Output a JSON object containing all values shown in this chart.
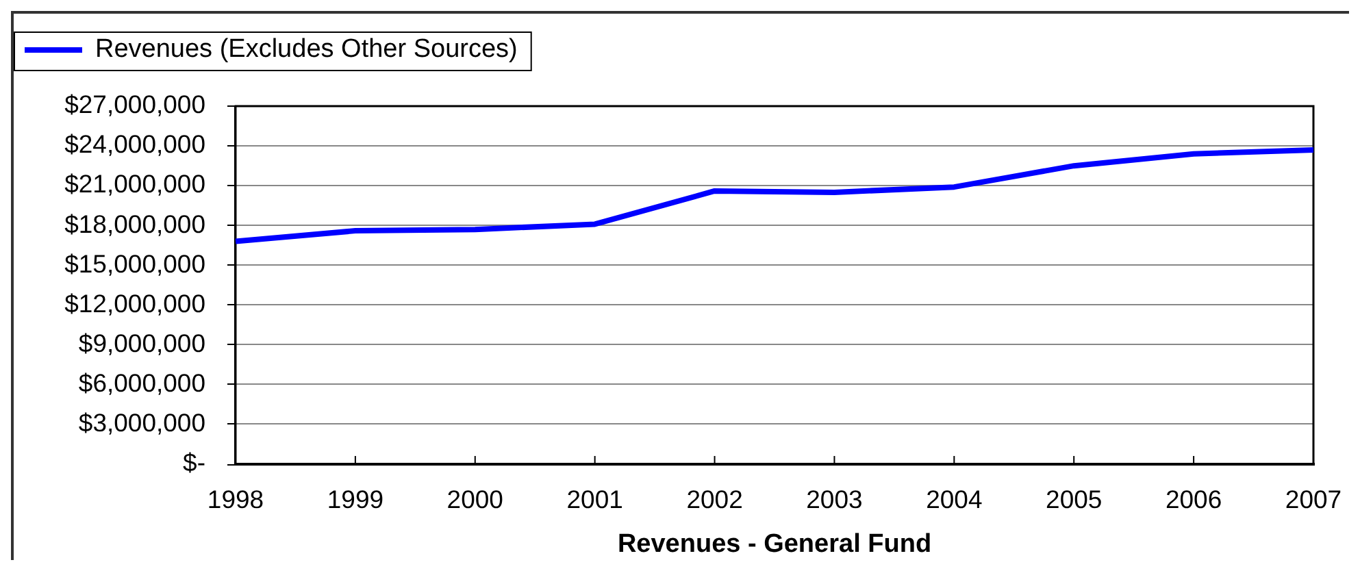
{
  "chart_data": {
    "type": "line",
    "categories": [
      "1998",
      "1999",
      "2000",
      "2001",
      "2002",
      "2003",
      "2004",
      "2005",
      "2006",
      "2007"
    ],
    "series": [
      {
        "name": "Revenues (Excludes Other Sources)",
        "color": "#0000ff",
        "values": [
          16800000,
          17600000,
          17700000,
          18100000,
          20600000,
          20500000,
          20900000,
          22500000,
          23400000,
          23700000
        ]
      }
    ],
    "xlabel": "Revenues - General Fund",
    "ylim": [
      0,
      27000000
    ],
    "yticks": [
      {
        "value": 0,
        "label": "$-"
      },
      {
        "value": 3000000,
        "label": "$3,000,000"
      },
      {
        "value": 6000000,
        "label": "$6,000,000"
      },
      {
        "value": 9000000,
        "label": "$9,000,000"
      },
      {
        "value": 12000000,
        "label": "$12,000,000"
      },
      {
        "value": 15000000,
        "label": "$15,000,000"
      },
      {
        "value": 18000000,
        "label": "$18,000,000"
      },
      {
        "value": 21000000,
        "label": "$21,000,000"
      },
      {
        "value": 24000000,
        "label": "$24,000,000"
      },
      {
        "value": 27000000,
        "label": "$27,000,000"
      }
    ],
    "grid": "y",
    "legend": "top left",
    "marker": "none",
    "line_style": "solid"
  }
}
